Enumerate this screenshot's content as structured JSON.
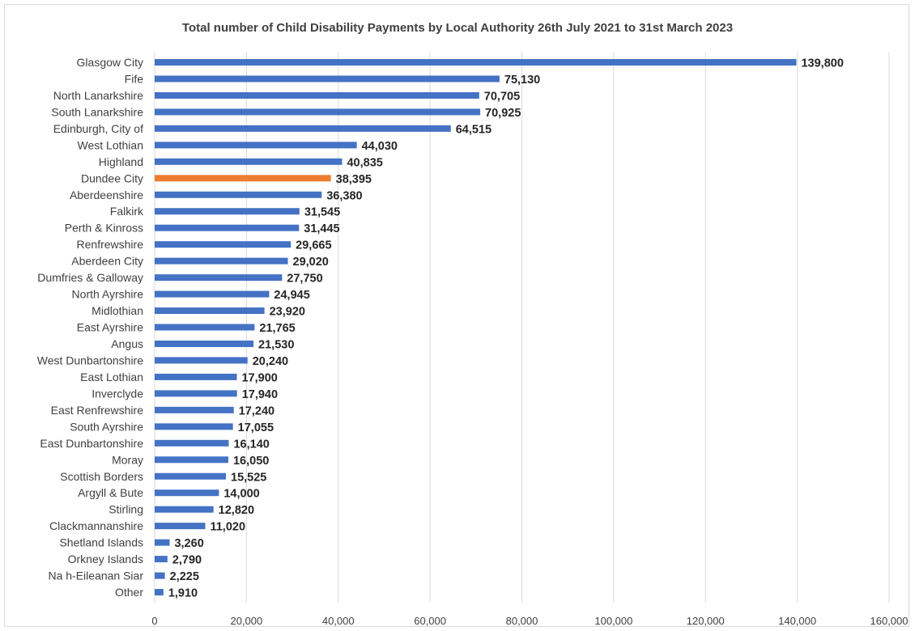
{
  "chart_data": {
    "type": "bar",
    "orientation": "horizontal",
    "title": "Total number of Child Disability Payments by Local Authority 26th July 2021 to 31st March 2023",
    "xlabel": "",
    "ylabel": "",
    "categories": [
      "Glasgow City",
      "Fife",
      "North Lanarkshire",
      "South Lanarkshire",
      "Edinburgh, City of",
      "West Lothian",
      "Highland",
      "Dundee City",
      "Aberdeenshire",
      "Falkirk",
      "Perth & Kinross",
      "Renfrewshire",
      "Aberdeen City",
      "Dumfries & Galloway",
      "North Ayrshire",
      "Midlothian",
      "East Ayrshire",
      "Angus",
      "West Dunbartonshire",
      "East Lothian",
      "Inverclyde",
      "East Renfrewshire",
      "South Ayrshire",
      "East Dunbartonshire",
      "Moray",
      "Scottish Borders",
      "Argyll & Bute",
      "Stirling",
      "Clackmannanshire",
      "Shetland Islands",
      "Orkney Islands",
      "Na h-Eileanan Siar",
      "Other"
    ],
    "values": [
      139800,
      75130,
      70705,
      70925,
      64515,
      44030,
      40835,
      38395,
      36380,
      31545,
      31445,
      29665,
      29020,
      27750,
      24945,
      23920,
      21765,
      21530,
      20240,
      17900,
      17940,
      17240,
      17055,
      16140,
      16050,
      15525,
      14000,
      12820,
      11020,
      3260,
      2790,
      2225,
      1910
    ],
    "value_labels": [
      "139,800",
      "75,130",
      "70,705",
      "70,925",
      "64,515",
      "44,030",
      "40,835",
      "38,395",
      "36,380",
      "31,545",
      "31,445",
      "29,665",
      "29,020",
      "27,750",
      "24,945",
      "23,920",
      "21,765",
      "21,530",
      "20,240",
      "17,900",
      "17,940",
      "17,240",
      "17,055",
      "16,140",
      "16,050",
      "15,525",
      "14,000",
      "12,820",
      "11,020",
      "3,260",
      "2,790",
      "2,225",
      "1,910"
    ],
    "xlim": [
      0,
      160000
    ],
    "x_ticks": [
      0,
      20000,
      40000,
      60000,
      80000,
      100000,
      120000,
      140000,
      160000
    ],
    "x_tick_labels": [
      "0",
      "20,000",
      "40,000",
      "60,000",
      "80,000",
      "100,000",
      "120,000",
      "140,000",
      "160,000"
    ],
    "bar_color": "#4472C4",
    "highlight_color": "#ED7D31",
    "highlight_category": "Dundee City",
    "grid": "vertical",
    "grid_color": "#d9d9d9",
    "legend": "none"
  }
}
